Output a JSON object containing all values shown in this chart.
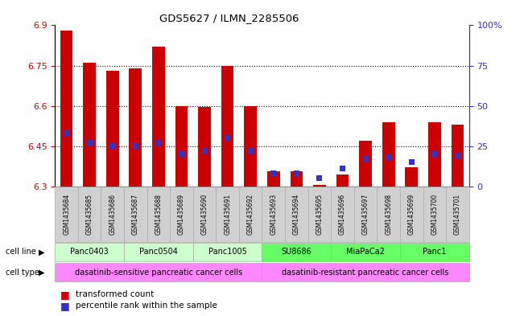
{
  "title": "GDS5627 / ILMN_2285506",
  "samples": [
    "GSM1435684",
    "GSM1435685",
    "GSM1435686",
    "GSM1435687",
    "GSM1435688",
    "GSM1435689",
    "GSM1435690",
    "GSM1435691",
    "GSM1435692",
    "GSM1435693",
    "GSM1435694",
    "GSM1435695",
    "GSM1435696",
    "GSM1435697",
    "GSM1435698",
    "GSM1435699",
    "GSM1435700",
    "GSM1435701"
  ],
  "transformed_count": [
    6.88,
    6.76,
    6.73,
    6.74,
    6.82,
    6.6,
    6.595,
    6.75,
    6.6,
    6.355,
    6.355,
    6.305,
    6.345,
    6.47,
    6.54,
    6.37,
    6.54,
    6.53
  ],
  "percentile_rank": [
    33,
    27,
    25,
    25,
    27,
    20,
    22,
    30,
    22,
    8,
    8,
    5,
    11,
    17,
    18,
    15,
    20,
    19
  ],
  "ylim_left": [
    6.3,
    6.9
  ],
  "ylim_right": [
    0,
    100
  ],
  "yticks_left": [
    6.3,
    6.45,
    6.6,
    6.75,
    6.9
  ],
  "ytick_labels_left": [
    "6.3",
    "6.45",
    "6.6",
    "6.75",
    "6.9"
  ],
  "yticks_right": [
    0,
    25,
    50,
    75,
    100
  ],
  "ytick_labels_right": [
    "0",
    "25",
    "50",
    "75",
    "100%"
  ],
  "bar_color": "#cc0000",
  "blue_color": "#3333bb",
  "baseline": 6.3,
  "cell_lines": [
    {
      "label": "Panc0403",
      "start": 0,
      "end": 3
    },
    {
      "label": "Panc0504",
      "start": 3,
      "end": 6
    },
    {
      "label": "Panc1005",
      "start": 6,
      "end": 9
    },
    {
      "label": "SU8686",
      "start": 9,
      "end": 12
    },
    {
      "label": "MiaPaCa2",
      "start": 12,
      "end": 15
    },
    {
      "label": "Panc1",
      "start": 15,
      "end": 18
    }
  ],
  "cell_line_color_sensitive": "#ccffcc",
  "cell_line_color_resistant": "#66ff66",
  "cell_type_color": "#ff88ff",
  "cell_types": [
    {
      "label": "dasatinib-sensitive pancreatic cancer cells",
      "start": 0,
      "end": 9
    },
    {
      "label": "dasatinib-resistant pancreatic cancer cells",
      "start": 9,
      "end": 18
    }
  ],
  "grid_color": "black",
  "grid_linestyle": ":",
  "bg_color": "white",
  "bar_width": 0.55,
  "left_axis_color": "#cc0000",
  "right_axis_color": "#3333bb",
  "sample_box_color": "#d0d0d0",
  "grid_yticks": [
    6.45,
    6.6,
    6.75
  ]
}
